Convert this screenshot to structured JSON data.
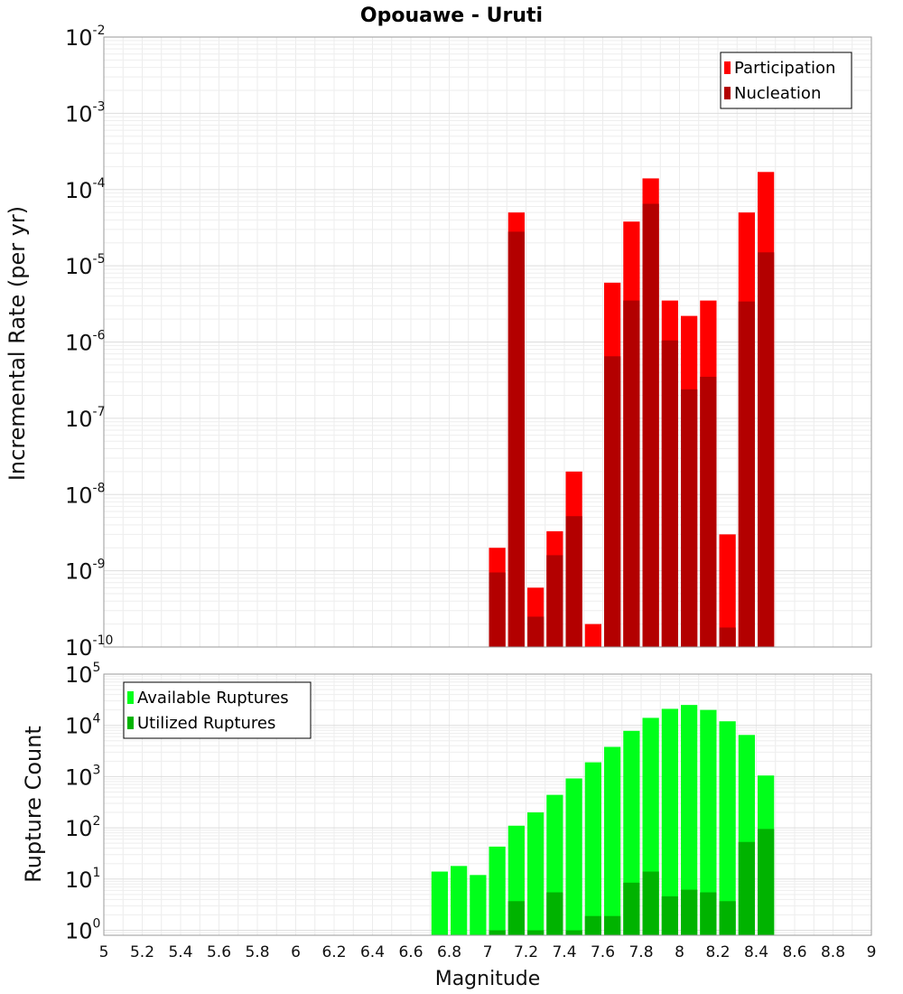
{
  "chart_data": [
    {
      "type": "bar",
      "title": "Opouawe - Uruti",
      "xlabel": "Magnitude",
      "ylabel": "Incremental Rate (per yr)",
      "yscale": "log",
      "xlim": [
        5,
        9
      ],
      "ylim": [
        1e-10,
        0.01
      ],
      "grid": true,
      "legend_placement": "top-right",
      "bin_width": 0.1,
      "x_ticks": [
        "5",
        "5.2",
        "5.4",
        "5.6",
        "5.8",
        "6",
        "6.2",
        "6.4",
        "6.6",
        "6.8",
        "7",
        "7.2",
        "7.4",
        "7.6",
        "7.8",
        "8",
        "8.2",
        "8.4",
        "8.6",
        "8.8",
        "9"
      ],
      "y_ticks": [
        {
          "base": "10",
          "exp": "-10"
        },
        {
          "base": "10",
          "exp": "-9"
        },
        {
          "base": "10",
          "exp": "-8"
        },
        {
          "base": "10",
          "exp": "-7"
        },
        {
          "base": "10",
          "exp": "-6"
        },
        {
          "base": "10",
          "exp": "-5"
        },
        {
          "base": "10",
          "exp": "-4"
        },
        {
          "base": "10",
          "exp": "-3"
        },
        {
          "base": "10",
          "exp": "-2"
        }
      ],
      "x": [
        7.05,
        7.15,
        7.25,
        7.35,
        7.45,
        7.55,
        7.65,
        7.75,
        7.85,
        7.95,
        8.05,
        8.15,
        8.25,
        8.35,
        8.45
      ],
      "series": [
        {
          "name": "Participation",
          "color": "#ff0000",
          "values": [
            2e-09,
            5e-05,
            6e-10,
            3.3e-09,
            2e-08,
            2e-10,
            6e-06,
            3.8e-05,
            0.00014,
            3.5e-06,
            2.2e-06,
            3.5e-06,
            3e-09,
            5e-05,
            0.00017
          ]
        },
        {
          "name": "Nucleation",
          "color": "#b30000",
          "values": [
            9.5e-10,
            2.8e-05,
            2.5e-10,
            1.6e-09,
            5.2e-09,
            null,
            6.5e-07,
            3.5e-06,
            6.5e-05,
            1.05e-06,
            2.4e-07,
            3.5e-07,
            1.8e-10,
            3.4e-06,
            1.5e-05
          ]
        }
      ]
    },
    {
      "type": "bar",
      "title": "",
      "xlabel": "Magnitude",
      "ylabel": "Rupture Count",
      "yscale": "log",
      "xlim": [
        5,
        9
      ],
      "ylim": [
        0.8,
        100000.0
      ],
      "grid": true,
      "legend_placement": "top-left",
      "bin_width": 0.1,
      "y_ticks": [
        {
          "base": "10",
          "exp": "0"
        },
        {
          "base": "10",
          "exp": "1"
        },
        {
          "base": "10",
          "exp": "2"
        },
        {
          "base": "10",
          "exp": "3"
        },
        {
          "base": "10",
          "exp": "4"
        },
        {
          "base": "10",
          "exp": "5"
        }
      ],
      "x": [
        6.75,
        6.85,
        6.95,
        7.05,
        7.15,
        7.25,
        7.35,
        7.45,
        7.55,
        7.65,
        7.75,
        7.85,
        7.95,
        8.05,
        8.15,
        8.25,
        8.35,
        8.45
      ],
      "series": [
        {
          "name": "Available Ruptures",
          "color": "#00ff1a",
          "values": [
            14,
            18,
            12,
            43,
            110,
            200,
            440,
            920,
            1900,
            3800,
            7800,
            14000,
            21000,
            25000,
            20000,
            12000,
            6500,
            1050
          ]
        },
        {
          "name": "Utilized Ruptures",
          "color": "#00b300",
          "values": [
            null,
            null,
            null,
            1,
            3.7,
            1,
            5.5,
            1,
            1.9,
            1.9,
            8.5,
            14,
            4.6,
            6.2,
            5.5,
            3.7,
            53,
            95
          ]
        }
      ]
    }
  ]
}
